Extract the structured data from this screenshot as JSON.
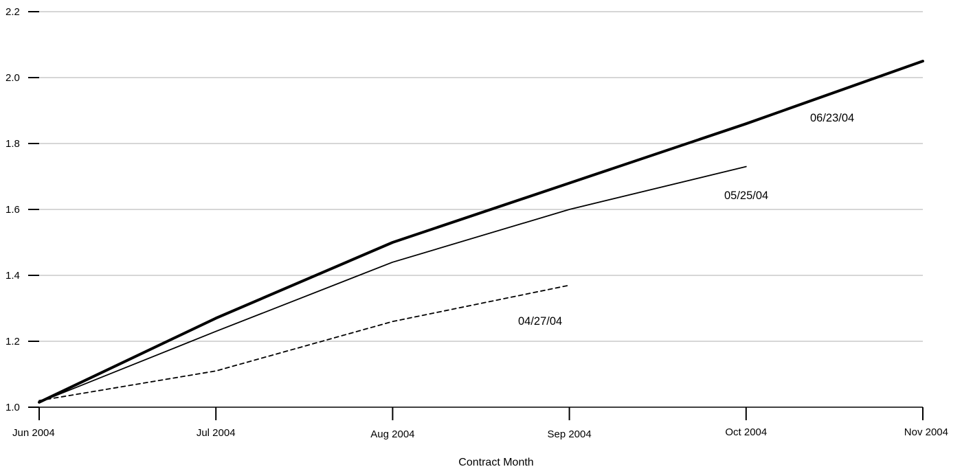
{
  "chart_data": {
    "type": "line",
    "title": "",
    "xlabel": "Contract Month",
    "ylabel": "",
    "categories": [
      "Jun 2004",
      "Jul 2004",
      "Aug 2004",
      "Sep 2004",
      "Oct 2004",
      "Nov 2004"
    ],
    "y_ticks": [
      "1.0",
      "1.2",
      "1.4",
      "1.6",
      "1.8",
      "2.0",
      "2.2"
    ],
    "ylim": [
      1.0,
      2.2
    ],
    "grid": true,
    "legend": "none",
    "series": [
      {
        "name": "04/27/04",
        "style": "dashed",
        "values": [
          1.02,
          1.11,
          1.26,
          1.37,
          null,
          null
        ]
      },
      {
        "name": "05/25/04",
        "style": "thin",
        "values": [
          1.015,
          1.23,
          1.44,
          1.6,
          1.73,
          null
        ]
      },
      {
        "name": "06/23/04",
        "style": "thick",
        "values": [
          1.015,
          1.27,
          1.5,
          1.68,
          1.86,
          2.05
        ]
      }
    ],
    "colors": {
      "line": "#000000",
      "grid": "#bdbdbd"
    }
  }
}
